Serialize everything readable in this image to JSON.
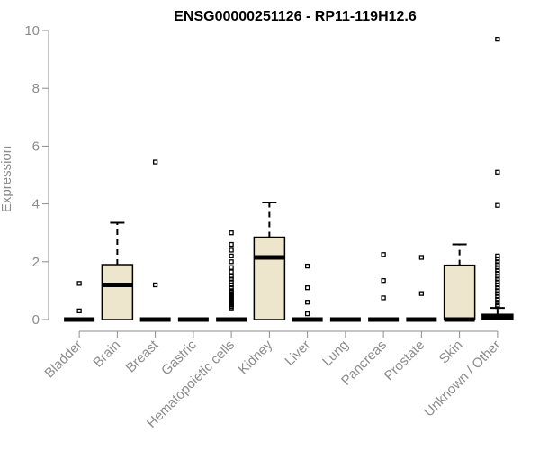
{
  "chart_data": {
    "type": "box",
    "title": "ENSG00000251126 - RP11-119H12.6",
    "xlabel": "",
    "ylabel": "Expression",
    "ylim": [
      0,
      10
    ],
    "y_ticks": [
      "0",
      "2",
      "4",
      "6",
      "8",
      "10"
    ],
    "categories": [
      "Bladder",
      "Brain",
      "Breast",
      "Gastric",
      "Hematopoietic cells",
      "Kidney",
      "Liver",
      "Lung",
      "Pancreas",
      "Prostate",
      "Skin",
      "Unknown / Other"
    ],
    "boxes": [
      {
        "q1": 0,
        "median": 0,
        "q3": 0,
        "whisker_low": 0,
        "whisker_high": 0,
        "outliers": [
          1.25,
          0.3
        ]
      },
      {
        "q1": 0,
        "median": 1.2,
        "q3": 1.9,
        "whisker_low": 0,
        "whisker_high": 3.35,
        "outliers": []
      },
      {
        "q1": 0,
        "median": 0,
        "q3": 0,
        "whisker_low": 0,
        "whisker_high": 0,
        "outliers": [
          5.45,
          1.2
        ]
      },
      {
        "q1": 0,
        "median": 0,
        "q3": 0,
        "whisker_low": 0,
        "whisker_high": 0,
        "outliers": []
      },
      {
        "q1": 0,
        "median": 0,
        "q3": 0,
        "whisker_low": 0,
        "whisker_high": 0,
        "outliers": [
          3.0,
          2.6,
          2.4,
          2.2,
          2.0,
          1.8,
          1.65,
          1.5,
          1.4,
          1.3,
          1.2,
          1.1,
          1.0,
          0.95,
          0.9,
          0.85,
          0.8,
          0.75,
          0.7,
          0.65,
          0.6,
          0.55,
          0.5,
          0.45,
          0.4
        ]
      },
      {
        "q1": 0,
        "median": 2.15,
        "q3": 2.85,
        "whisker_low": 0,
        "whisker_high": 4.05,
        "outliers": []
      },
      {
        "q1": 0,
        "median": 0,
        "q3": 0,
        "whisker_low": 0,
        "whisker_high": 0,
        "outliers": [
          1.85,
          1.1,
          0.6,
          0.2
        ]
      },
      {
        "q1": 0,
        "median": 0,
        "q3": 0,
        "whisker_low": 0,
        "whisker_high": 0,
        "outliers": []
      },
      {
        "q1": 0,
        "median": 0,
        "q3": 0,
        "whisker_low": 0,
        "whisker_high": 0,
        "outliers": [
          2.25,
          1.35,
          0.75
        ]
      },
      {
        "q1": 0,
        "median": 0,
        "q3": 0,
        "whisker_low": 0,
        "whisker_high": 0,
        "outliers": [
          2.15,
          0.9
        ]
      },
      {
        "q1": 0,
        "median": 0,
        "q3": 1.88,
        "whisker_low": 0,
        "whisker_high": 2.6,
        "outliers": []
      },
      {
        "q1": 0,
        "median": 0.08,
        "q3": 0.18,
        "whisker_low": 0,
        "whisker_high": 0.4,
        "outliers": [
          9.7,
          5.1,
          3.95,
          2.2,
          2.1,
          2.0,
          1.9,
          1.8,
          1.7,
          1.6,
          1.5,
          1.4,
          1.3,
          1.2,
          1.1,
          1.0,
          0.9,
          0.8,
          0.7,
          0.6,
          0.5,
          0.45
        ]
      }
    ],
    "box_fill": "#ede6cc",
    "outline_color": "#000000",
    "axis_color": "#8c8c8c",
    "grid": false
  }
}
